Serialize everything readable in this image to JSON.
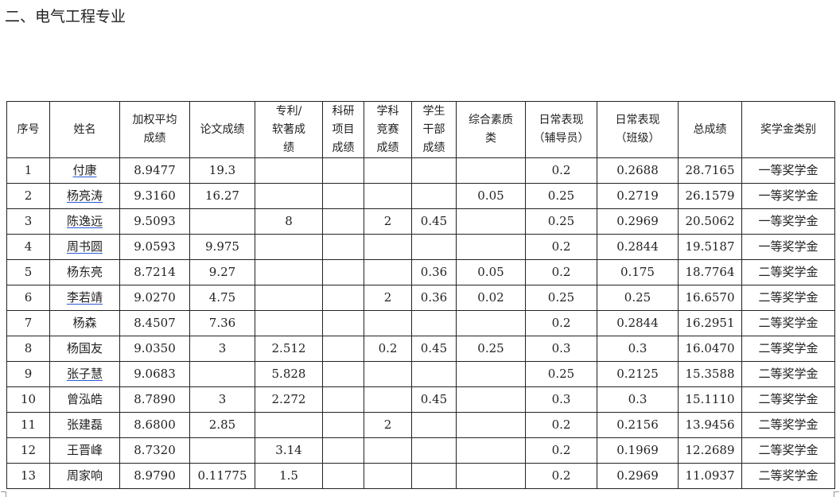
{
  "heading": "二、电气工程专业",
  "table": {
    "headers": [
      "序号",
      "姓名",
      "加权平均成绩",
      "论文成绩",
      "专利/软著成绩",
      "科研项目成绩",
      "学科竞赛成绩",
      "学生干部成绩",
      "综合素质类",
      "日常表现（辅导员）",
      "日常表现（班级）",
      "总成绩",
      "奖学金类别"
    ],
    "rows": [
      {
        "cells": [
          "1",
          "付康",
          "8.9477",
          "19.3",
          "",
          "",
          "",
          "",
          "",
          "0.2",
          "0.2688",
          "28.7165",
          "一等奖学金"
        ],
        "name_underlined": true
      },
      {
        "cells": [
          "2",
          "杨亮涛",
          "9.3160",
          "16.27",
          "",
          "",
          "",
          "",
          "0.05",
          "0.25",
          "0.2719",
          "26.1579",
          "一等奖学金"
        ],
        "name_underlined": true
      },
      {
        "cells": [
          "3",
          "陈逸远",
          "9.5093",
          "",
          "8",
          "",
          "2",
          "0.45",
          "",
          "0.25",
          "0.2969",
          "20.5062",
          "一等奖学金"
        ],
        "name_underlined": true
      },
      {
        "cells": [
          "4",
          "周书圆",
          "9.0593",
          "9.975",
          "",
          "",
          "",
          "",
          "",
          "0.2",
          "0.2844",
          "19.5187",
          "一等奖学金"
        ],
        "name_underlined": true
      },
      {
        "cells": [
          "5",
          "杨东亮",
          "8.7214",
          "9.27",
          "",
          "",
          "",
          "0.36",
          "0.05",
          "0.2",
          "0.175",
          "18.7764",
          "二等奖学金"
        ],
        "name_underlined": false
      },
      {
        "cells": [
          "6",
          "李若靖",
          "9.0270",
          "4.75",
          "",
          "",
          "2",
          "0.36",
          "0.02",
          "0.25",
          "0.25",
          "16.6570",
          "二等奖学金"
        ],
        "name_underlined": true
      },
      {
        "cells": [
          "7",
          "杨森",
          "8.4507",
          "7.36",
          "",
          "",
          "",
          "",
          "",
          "0.2",
          "0.2844",
          "16.2951",
          "二等奖学金"
        ],
        "name_underlined": false
      },
      {
        "cells": [
          "8",
          "杨国友",
          "9.0350",
          "3",
          "2.512",
          "",
          "0.2",
          "0.45",
          "0.25",
          "0.3",
          "0.3",
          "16.0470",
          "二等奖学金"
        ],
        "name_underlined": false
      },
      {
        "cells": [
          "9",
          "张子慧",
          "9.0683",
          "",
          "5.828",
          "",
          "",
          "",
          "",
          "0.25",
          "0.2125",
          "15.3588",
          "二等奖学金"
        ],
        "name_underlined": true
      },
      {
        "cells": [
          "10",
          "曾泓皓",
          "8.7890",
          "3",
          "2.272",
          "",
          "",
          "0.45",
          "",
          "0.3",
          "0.3",
          "15.1110",
          "二等奖学金"
        ],
        "name_underlined": false
      },
      {
        "cells": [
          "11",
          "张建磊",
          "8.6800",
          "2.85",
          "",
          "",
          "2",
          "",
          "",
          "0.2",
          "0.2156",
          "13.9456",
          "二等奖学金"
        ],
        "name_underlined": false
      },
      {
        "cells": [
          "12",
          "王晋峰",
          "8.7320",
          "",
          "3.14",
          "",
          "",
          "",
          "",
          "0.2",
          "0.1969",
          "12.2689",
          "二等奖学金"
        ],
        "name_underlined": false
      },
      {
        "cells": [
          "13",
          "周家响",
          "8.9790",
          "0.11775",
          "1.5",
          "",
          "",
          "",
          "",
          "0.2",
          "0.2969",
          "11.0937",
          "二等奖学金"
        ],
        "name_underlined": false
      }
    ]
  }
}
